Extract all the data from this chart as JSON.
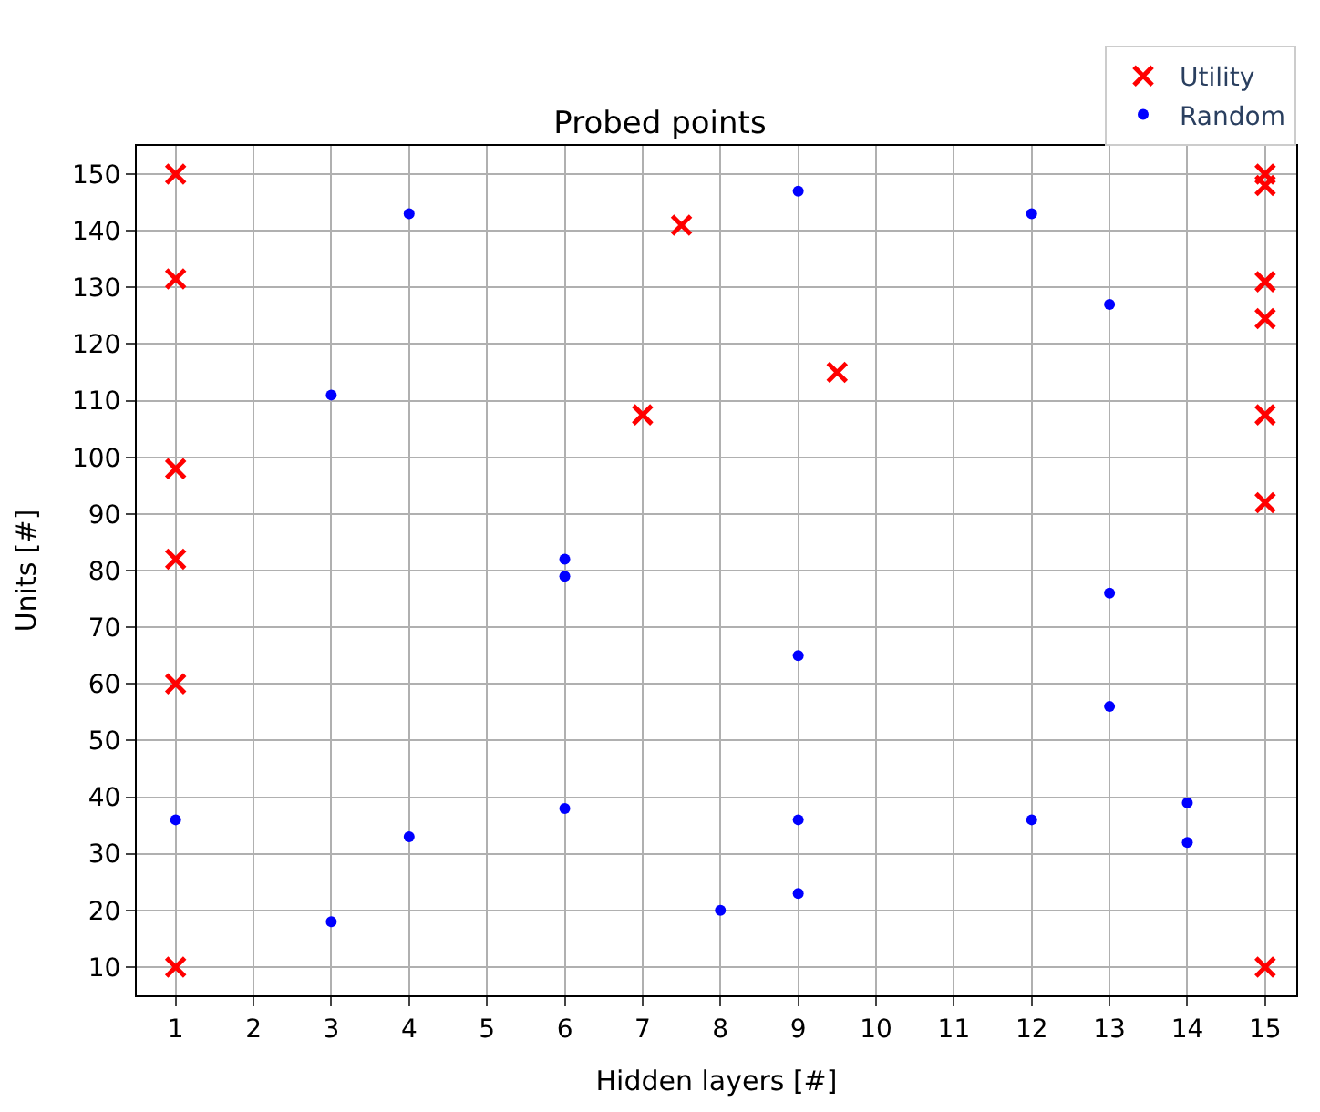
{
  "chart_data": {
    "type": "scatter",
    "title": "Probed points",
    "xlabel": "Hidden layers [#]",
    "ylabel": "Units [#]",
    "series": [
      {
        "name": "Utility",
        "color": "#ff0000",
        "marker": "cross",
        "x": [
          1,
          1,
          1,
          1,
          1,
          1,
          7,
          7.5,
          9.5,
          15,
          15,
          15,
          15,
          15,
          15,
          15
        ],
        "values": [
          150,
          131.5,
          98,
          82,
          60,
          10,
          107.5,
          141,
          115,
          150,
          148,
          131,
          124.5,
          107.5,
          92,
          10
        ]
      },
      {
        "name": "Random",
        "color": "#0000ff",
        "marker": "circle",
        "x": [
          1,
          3,
          3,
          4,
          4,
          6,
          6,
          6,
          8,
          9,
          9,
          9,
          9,
          12,
          12,
          13,
          13,
          13,
          14,
          14
        ],
        "values": [
          36,
          111,
          18,
          143,
          33,
          82,
          79,
          38,
          20,
          147,
          65,
          36,
          23,
          143,
          36,
          127,
          76,
          56,
          39,
          32
        ]
      }
    ],
    "xlim": [
      0.5,
      15.4
    ],
    "xticks": [
      1,
      2,
      3,
      4,
      5,
      6,
      7,
      8,
      9,
      10,
      11,
      12,
      13,
      14,
      15
    ],
    "ylim": [
      5,
      155
    ],
    "yticks": [
      10,
      20,
      30,
      40,
      50,
      60,
      70,
      80,
      90,
      100,
      110,
      120,
      130,
      140,
      150
    ],
    "grid": true,
    "legend": "top right"
  }
}
